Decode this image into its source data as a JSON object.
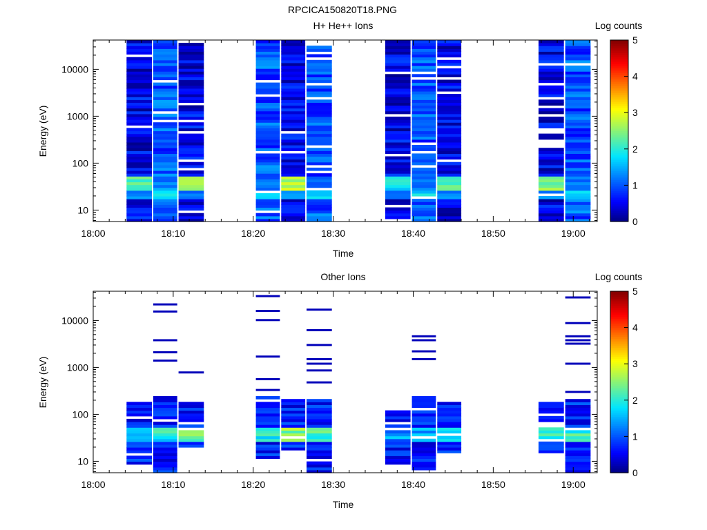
{
  "figure": {
    "title": "RPCICA150820T18.PNG"
  },
  "colorbar": {
    "title": "Log counts",
    "ticks": [
      0,
      1,
      2,
      3,
      4,
      5
    ],
    "range": [
      0,
      5
    ]
  },
  "chart_data": [
    {
      "type": "heatmap",
      "title": "H+ He++ Ions",
      "xlabel": "Time",
      "ylabel": "Energy (eV)",
      "yscale": "log",
      "ylim": [
        5.7,
        42000
      ],
      "xlim_minutes": [
        0,
        63
      ],
      "x_ticks": [
        "18:00",
        "18:10",
        "18:20",
        "18:30",
        "18:40",
        "18:50",
        "19:00"
      ],
      "y_ticks": [
        "10",
        "100",
        "1000",
        "10000"
      ],
      "colorbar_label": "Log counts",
      "columns": [
        {
          "start": "18:04:10",
          "end": "18:07:20",
          "base": 0.5,
          "peak_band_eV": [
            28,
            50
          ],
          "peak": 2.6
        },
        {
          "start": "18:07:30",
          "end": "18:10:30",
          "base": 1.0,
          "peak_band_eV": [
            28,
            50
          ],
          "peak": 1.6
        },
        {
          "start": "18:10:40",
          "end": "18:13:50",
          "base": 0.5,
          "peak_band_eV": [
            28,
            50
          ],
          "peak": 3.0
        },
        {
          "start": "18:20:20",
          "end": "18:23:20",
          "base": 1.0,
          "peak_band_eV": [
            28,
            50
          ],
          "peak": 1.5
        },
        {
          "start": "18:23:30",
          "end": "18:26:30",
          "base": 0.5,
          "peak_band_eV": [
            28,
            50
          ],
          "peak": 3.0
        },
        {
          "start": "18:26:40",
          "end": "18:29:50",
          "base": 1.0,
          "peak_band_eV": [
            28,
            50
          ],
          "peak": 1.5
        },
        {
          "start": "18:36:30",
          "end": "18:39:40",
          "base": 0.5,
          "peak_band_eV": [
            28,
            50
          ],
          "peak": 2.1
        },
        {
          "start": "18:39:50",
          "end": "18:42:50",
          "base": 1.0,
          "peak_band_eV": [
            28,
            50
          ],
          "peak": 1.4
        },
        {
          "start": "18:43:00",
          "end": "18:46:00",
          "base": 0.5,
          "peak_band_eV": [
            28,
            50
          ],
          "peak": 2.6
        },
        {
          "start": "18:55:40",
          "end": "18:58:50",
          "base": 0.5,
          "peak_band_eV": [
            28,
            50
          ],
          "peak": 2.8
        },
        {
          "start": "18:59:00",
          "end": "19:02:10",
          "base": 1.0,
          "peak_band_eV": [
            28,
            50
          ],
          "peak": 1.4
        }
      ]
    },
    {
      "type": "heatmap",
      "title": "Other Ions",
      "xlabel": "Time",
      "ylabel": "Energy (eV)",
      "yscale": "log",
      "ylim": [
        5.7,
        42000
      ],
      "xlim_minutes": [
        0,
        63
      ],
      "x_ticks": [
        "18:00",
        "18:10",
        "18:20",
        "18:30",
        "18:40",
        "18:50",
        "19:00"
      ],
      "y_ticks": [
        "10",
        "100",
        "1000",
        "10000"
      ],
      "colorbar_label": "Log counts",
      "columns": [
        {
          "start": "18:04:10",
          "end": "18:07:20",
          "low_eV": 8.5,
          "high_eV": 190,
          "peak_band_eV": [
            28,
            55
          ],
          "peak": 2.0,
          "sparse_eV": []
        },
        {
          "start": "18:07:30",
          "end": "18:10:30",
          "low_eV": 5.7,
          "high_eV": 250,
          "peak_band_eV": [
            28,
            55
          ],
          "peak": 2.4,
          "sparse_eV": [
            22000,
            15500,
            3800,
            2100,
            1400
          ]
        },
        {
          "start": "18:10:40",
          "end": "18:13:50",
          "low_eV": 20,
          "high_eV": 190,
          "peak_band_eV": [
            28,
            55
          ],
          "peak": 2.9,
          "sparse_eV": [
            780
          ]
        },
        {
          "start": "18:20:20",
          "end": "18:23:20",
          "low_eV": 11,
          "high_eV": 240,
          "peak_band_eV": [
            28,
            55
          ],
          "peak": 2.5,
          "sparse_eV": [
            33000,
            16000,
            10200,
            1700,
            560,
            330
          ]
        },
        {
          "start": "18:23:30",
          "end": "18:26:30",
          "low_eV": 15,
          "high_eV": 200,
          "peak_band_eV": [
            28,
            55
          ],
          "peak": 2.9,
          "sparse_eV": []
        },
        {
          "start": "18:26:40",
          "end": "18:29:50",
          "low_eV": 5.7,
          "high_eV": 220,
          "peak_band_eV": [
            28,
            55
          ],
          "peak": 2.7,
          "sparse_eV": [
            17000,
            6200,
            3000,
            1500,
            1200,
            860,
            480
          ]
        },
        {
          "start": "18:36:30",
          "end": "18:39:40",
          "low_eV": 9,
          "high_eV": 130,
          "peak_band_eV": [
            28,
            55
          ],
          "peak": 1.8,
          "sparse_eV": []
        },
        {
          "start": "18:39:50",
          "end": "18:42:50",
          "low_eV": 5.7,
          "high_eV": 230,
          "peak_band_eV": [
            28,
            55
          ],
          "peak": 2.0,
          "sparse_eV": [
            4600,
            3800,
            2200,
            1500
          ]
        },
        {
          "start": "18:43:00",
          "end": "18:46:00",
          "low_eV": 15,
          "high_eV": 190,
          "peak_band_eV": [
            28,
            55
          ],
          "peak": 2.4,
          "sparse_eV": []
        },
        {
          "start": "18:55:40",
          "end": "18:58:50",
          "low_eV": 15,
          "high_eV": 190,
          "peak_band_eV": [
            28,
            55
          ],
          "peak": 2.6,
          "sparse_eV": []
        },
        {
          "start": "18:59:00",
          "end": "19:02:10",
          "low_eV": 5.7,
          "high_eV": 200,
          "peak_band_eV": [
            28,
            55
          ],
          "peak": 2.6,
          "sparse_eV": [
            31000,
            8800,
            4600,
            3800,
            3200,
            1200,
            300
          ]
        }
      ]
    }
  ]
}
